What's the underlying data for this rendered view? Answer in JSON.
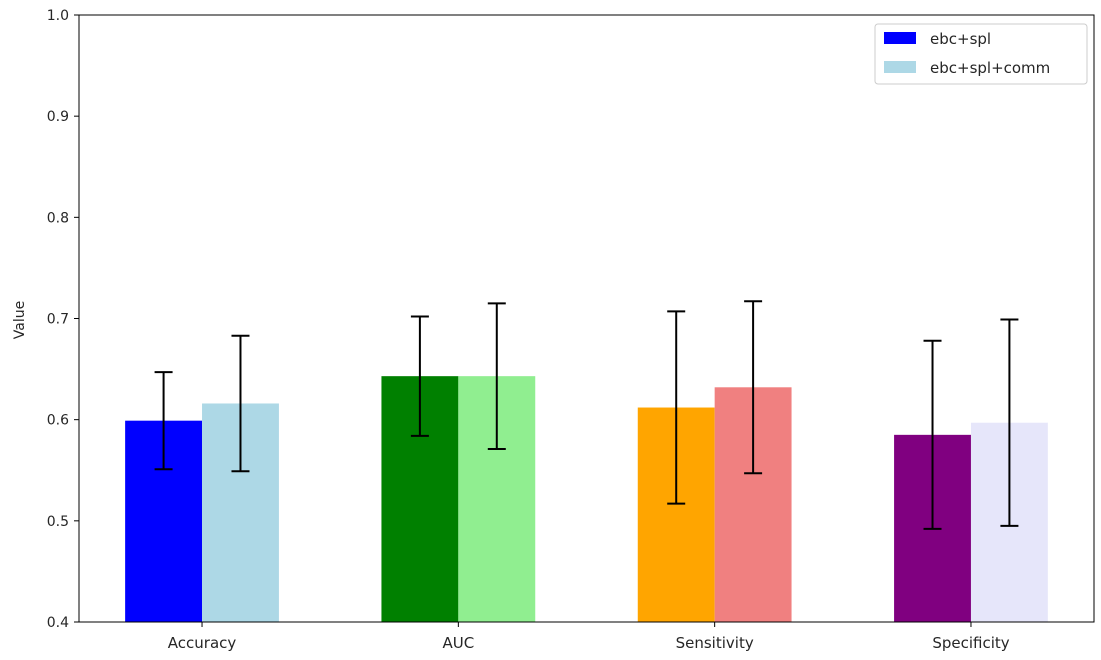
{
  "chart_data": {
    "type": "bar",
    "title": "",
    "xlabel": "",
    "ylabel": "Value",
    "ylim": [
      0.4,
      1.0
    ],
    "yticks": [
      "0.4",
      "0.5",
      "0.6",
      "0.7",
      "0.8",
      "0.9",
      "1.0"
    ],
    "categories": [
      "Accuracy",
      "AUC",
      "Sensitivity",
      "Specificity"
    ],
    "series": [
      {
        "name": "ebc+spl",
        "legend_color": "#0000ff",
        "values": [
          0.599,
          0.643,
          0.612,
          0.585
        ],
        "errors": [
          0.048,
          0.059,
          0.095,
          0.093
        ],
        "colors": [
          "#0000ff",
          "#008000",
          "#ffa500",
          "#800080"
        ]
      },
      {
        "name": "ebc+spl+comm",
        "legend_color": "#add8e6",
        "values": [
          0.616,
          0.643,
          0.632,
          0.597
        ],
        "errors": [
          0.067,
          0.072,
          0.085,
          0.102
        ],
        "colors": [
          "#add8e6",
          "#90ee90",
          "#f08080",
          "#e6e6fa"
        ]
      }
    ],
    "legend_position": "top-right",
    "grid": false
  }
}
